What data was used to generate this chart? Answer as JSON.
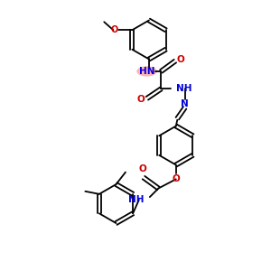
{
  "bg_color": "#ffffff",
  "bond_color": "#000000",
  "nh_color": "#0000dd",
  "o_color": "#cc0000",
  "n_color": "#0000dd",
  "highlight_fill": "#ff9999",
  "highlight_alpha": 0.75,
  "lw": 1.3,
  "figsize": [
    3.0,
    3.0
  ],
  "dpi": 100,
  "xlim": [
    0,
    10
  ],
  "ylim": [
    0,
    10
  ]
}
